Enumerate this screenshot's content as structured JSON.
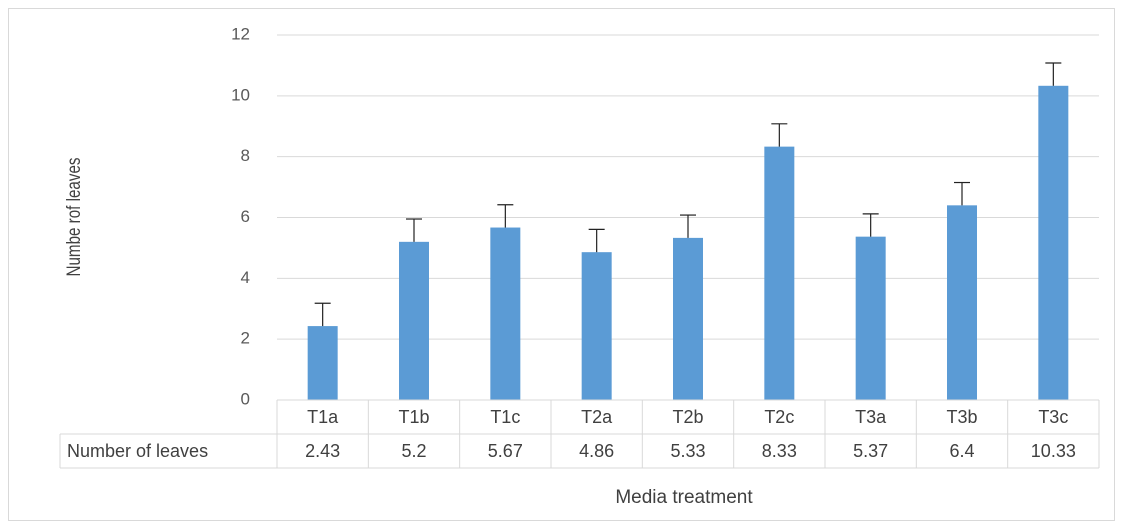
{
  "chart_data": {
    "type": "bar",
    "title": "",
    "xlabel": "Media treatment",
    "ylabel": "Numbe rof leaves",
    "ylim": [
      0,
      12
    ],
    "yticks": [
      0,
      2,
      4,
      6,
      8,
      10,
      12
    ],
    "categories": [
      "T1a",
      "T1b",
      "T1c",
      "T2a",
      "T2b",
      "T2c",
      "T3a",
      "T3b",
      "T3c"
    ],
    "series": [
      {
        "name": "Number of leaves",
        "values": [
          2.43,
          5.2,
          5.67,
          4.86,
          5.33,
          8.33,
          5.37,
          6.4,
          10.33
        ],
        "error": [
          0.75,
          0.75,
          0.75,
          0.75,
          0.75,
          0.75,
          0.75,
          0.75,
          0.75
        ],
        "color": "#5b9bd5"
      }
    ],
    "table_values": [
      "2.43",
      "5.2",
      "5.67",
      "4.86",
      "5.33",
      "8.33",
      "5.37",
      "6.4",
      "10.33"
    ],
    "grid": true,
    "data_table": true,
    "gridline_color": "#d9d9d9"
  }
}
